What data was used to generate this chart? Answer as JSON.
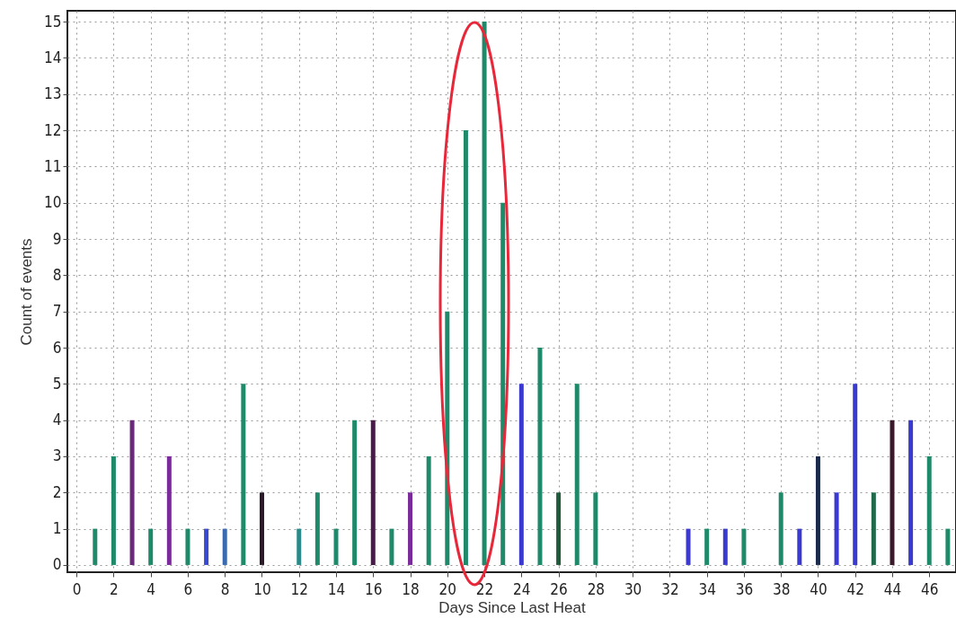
{
  "chart_data": {
    "type": "bar",
    "xlabel": "Days Since Last Heat",
    "ylabel": "Count of events",
    "x": [
      1,
      2,
      3,
      4,
      5,
      6,
      7,
      8,
      9,
      10,
      12,
      13,
      14,
      15,
      16,
      17,
      18,
      19,
      20,
      21,
      22,
      23,
      24,
      25,
      26,
      27,
      28,
      33,
      34,
      35,
      36,
      38,
      39,
      40,
      41,
      42,
      43,
      44,
      45,
      46,
      47
    ],
    "values": [
      1,
      3,
      4,
      1,
      3,
      1,
      1,
      1,
      5,
      2,
      1,
      2,
      1,
      4,
      4,
      1,
      2,
      3,
      7,
      12,
      15,
      10,
      5,
      6,
      2,
      5,
      2,
      1,
      1,
      1,
      1,
      2,
      1,
      3,
      2,
      5,
      2,
      4,
      4,
      3,
      1
    ],
    "colors": [
      "#1f8a6a",
      "#1f8a6a",
      "#6a2a7a",
      "#1f8a6a",
      "#7a2a9a",
      "#1f8a6a",
      "#3a4ad0",
      "#3a6ab0",
      "#1f8a6a",
      "#2a1a2a",
      "#2a8a8a",
      "#1f8a6a",
      "#1f8a6a",
      "#1f8a6a",
      "#4a1a4a",
      "#1f8a6a",
      "#7a2a9a",
      "#1f8a6a",
      "#1f8a6a",
      "#1f8a6a",
      "#1f8a6a",
      "#1f8a6a",
      "#3a3ad0",
      "#1f8a6a",
      "#1f5a3a",
      "#1f8a6a",
      "#1f8a6a",
      "#3a3ad0",
      "#1f8a6a",
      "#3a3ad0",
      "#1f8a6a",
      "#1f8a6a",
      "#3a3ad0",
      "#1a2a4a",
      "#3a3ad0",
      "#3a3ad0",
      "#1f6a4a",
      "#3a1a2a",
      "#3a3ad0",
      "#1f8a6a",
      "#1f8a6a"
    ],
    "xlim": [
      -0.25,
      47.2
    ],
    "xticks": [
      0,
      2,
      4,
      6,
      8,
      10,
      12,
      14,
      16,
      18,
      20,
      22,
      24,
      26,
      28,
      30,
      32,
      34,
      36,
      38,
      40,
      42,
      44,
      46
    ],
    "ylim": [
      -0.2,
      15.3
    ],
    "yticks": [
      0,
      1,
      2,
      3,
      4,
      5,
      6,
      7,
      8,
      9,
      10,
      11,
      12,
      13,
      14,
      15
    ],
    "grid": true
  }
}
